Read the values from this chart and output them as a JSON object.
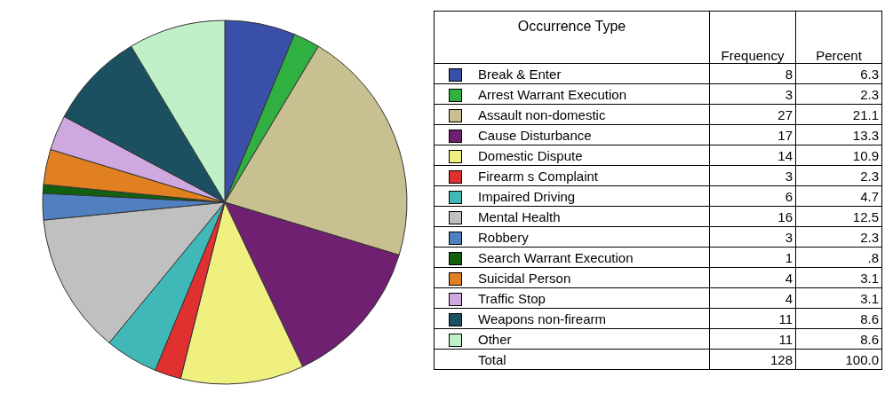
{
  "chart_data": {
    "type": "pie",
    "legend_title": "Occurrence Type",
    "categories": [
      "Break & Enter",
      "Arrest Warrant Execution",
      "Assault non-domestic",
      "Cause Disturbance",
      "Domestic Dispute",
      "Firearm s Complaint",
      "Impaired Driving",
      "Mental Health",
      "Robbery",
      "Search Warrant Execution",
      "Suicidal Person",
      "Traffic Stop",
      "Weapons non-firearm",
      "Other"
    ],
    "colors": [
      "#3a50a8",
      "#30b040",
      "#c8c090",
      "#702070",
      "#f0f080",
      "#e03030",
      "#40b8b8",
      "#c0c0c0",
      "#5080c0",
      "#106010",
      "#e08020",
      "#d0a8e0",
      "#1a5060",
      "#c0f0c8"
    ],
    "values": [
      8,
      3,
      27,
      17,
      14,
      3,
      6,
      16,
      3,
      1,
      4,
      4,
      11,
      11
    ],
    "data_labels": true,
    "totals": [
      "128",
      "100.0"
    ],
    "annotations": [
      "Frequency",
      "Percent",
      "Total",
      {
        "text": "6.3",
        "x": "Break & Enter"
      },
      {
        "text": "2.3",
        "x": "Arrest Warrant Execution"
      },
      {
        "text": "21.1",
        "x": "Assault non-domestic"
      },
      {
        "text": "13.3",
        "x": "Cause Disturbance"
      },
      {
        "text": "10.9",
        "x": "Domestic Dispute"
      },
      {
        "text": "2.3",
        "x": "Firearm s Complaint"
      },
      {
        "text": "4.7",
        "x": "Impaired Driving"
      },
      {
        "text": "12.5",
        "x": "Mental Health"
      },
      {
        "text": "2.3",
        "x": "Robbery"
      },
      {
        "text": ".8",
        "x": "Search Warrant Execution"
      },
      {
        "text": "3.1",
        "x": "Suicidal Person"
      },
      {
        "text": "3.1",
        "x": "Traffic Stop"
      },
      {
        "text": "8.6",
        "x": "Weapons non-firearm"
      },
      {
        "text": "8.6",
        "x": "Other"
      }
    ],
    "legend": "right"
  }
}
